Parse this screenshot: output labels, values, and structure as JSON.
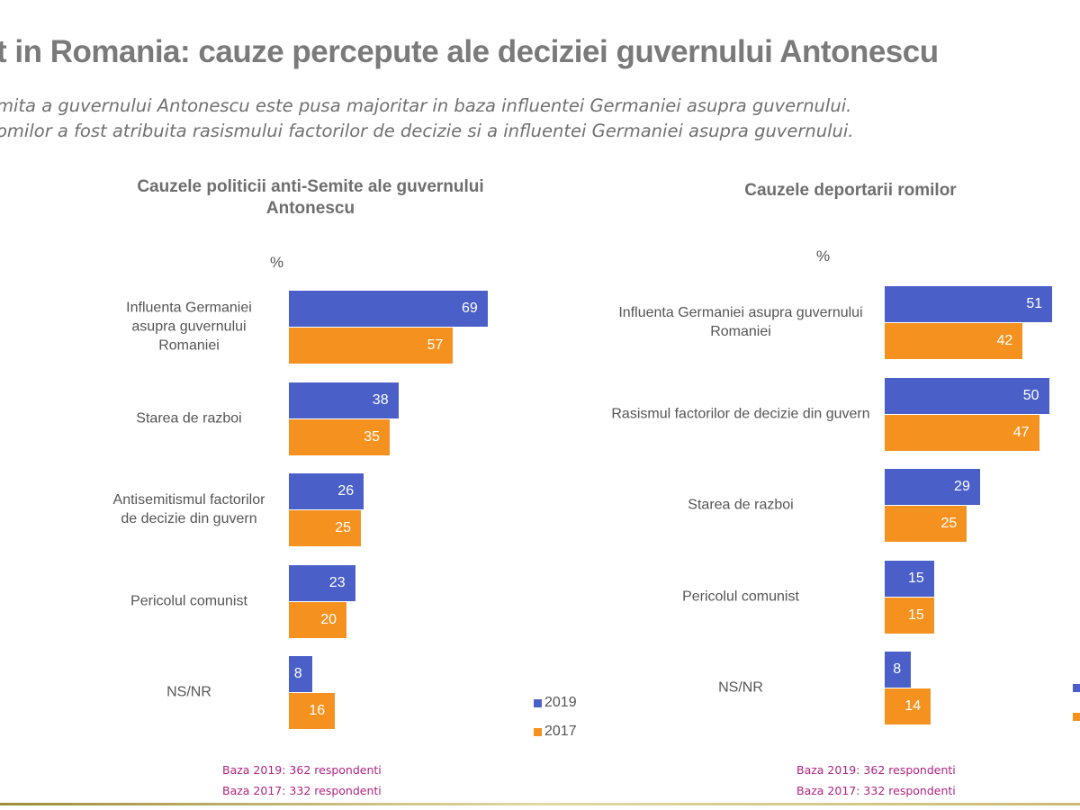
{
  "header": {
    "title": "t in Romania: cauze percepute ale deciziei guvernului Antonescu",
    "subtitle_lines": [
      "mita a guvernului Antonescu este pusa majoritar in baza influentei Germaniei asupra guvernului.",
      "omilor a fost atribuita rasismului factorilor de decizie si a influentei Germaniei asupra guvernului."
    ]
  },
  "colors": {
    "2019": "#4a60c8",
    "2017": "#f5921f"
  },
  "chart_data": [
    {
      "type": "bar",
      "orientation": "horizontal",
      "title": "Cauzele politicii anti-Semite ale guvernului Antonescu",
      "unit_label": "%",
      "categories": [
        "Influenta Germaniei asupra guvernului Romaniei",
        "Starea de razboi",
        "Antisemitismul factorilor de decizie din guvern",
        "Pericolul comunist",
        "NS/NR"
      ],
      "series": [
        {
          "name": "2019",
          "values": [
            69,
            38,
            26,
            23,
            8
          ]
        },
        {
          "name": "2017",
          "values": [
            57,
            35,
            25,
            20,
            16
          ]
        }
      ],
      "legend": "bottom-right",
      "base": [
        "Baza 2019: 362 respondenti",
        "Baza 2017: 332 respondenti"
      ]
    },
    {
      "type": "bar",
      "orientation": "horizontal",
      "title": "Cauzele deportarii romilor",
      "unit_label": "%",
      "categories": [
        "Influenta Germaniei asupra guvernului Romaniei",
        "Rasismul factorilor de decizie din guvern",
        "Starea de razboi",
        "Pericolul comunist",
        "NS/NR"
      ],
      "series": [
        {
          "name": "2019",
          "values": [
            51,
            50,
            29,
            15,
            8
          ]
        },
        {
          "name": "2017",
          "values": [
            42,
            47,
            25,
            15,
            14
          ]
        }
      ],
      "legend": "bottom-right",
      "base": [
        "Baza 2019: 362 respondenti",
        "Baza 2017: 332 respondenti"
      ]
    }
  ]
}
